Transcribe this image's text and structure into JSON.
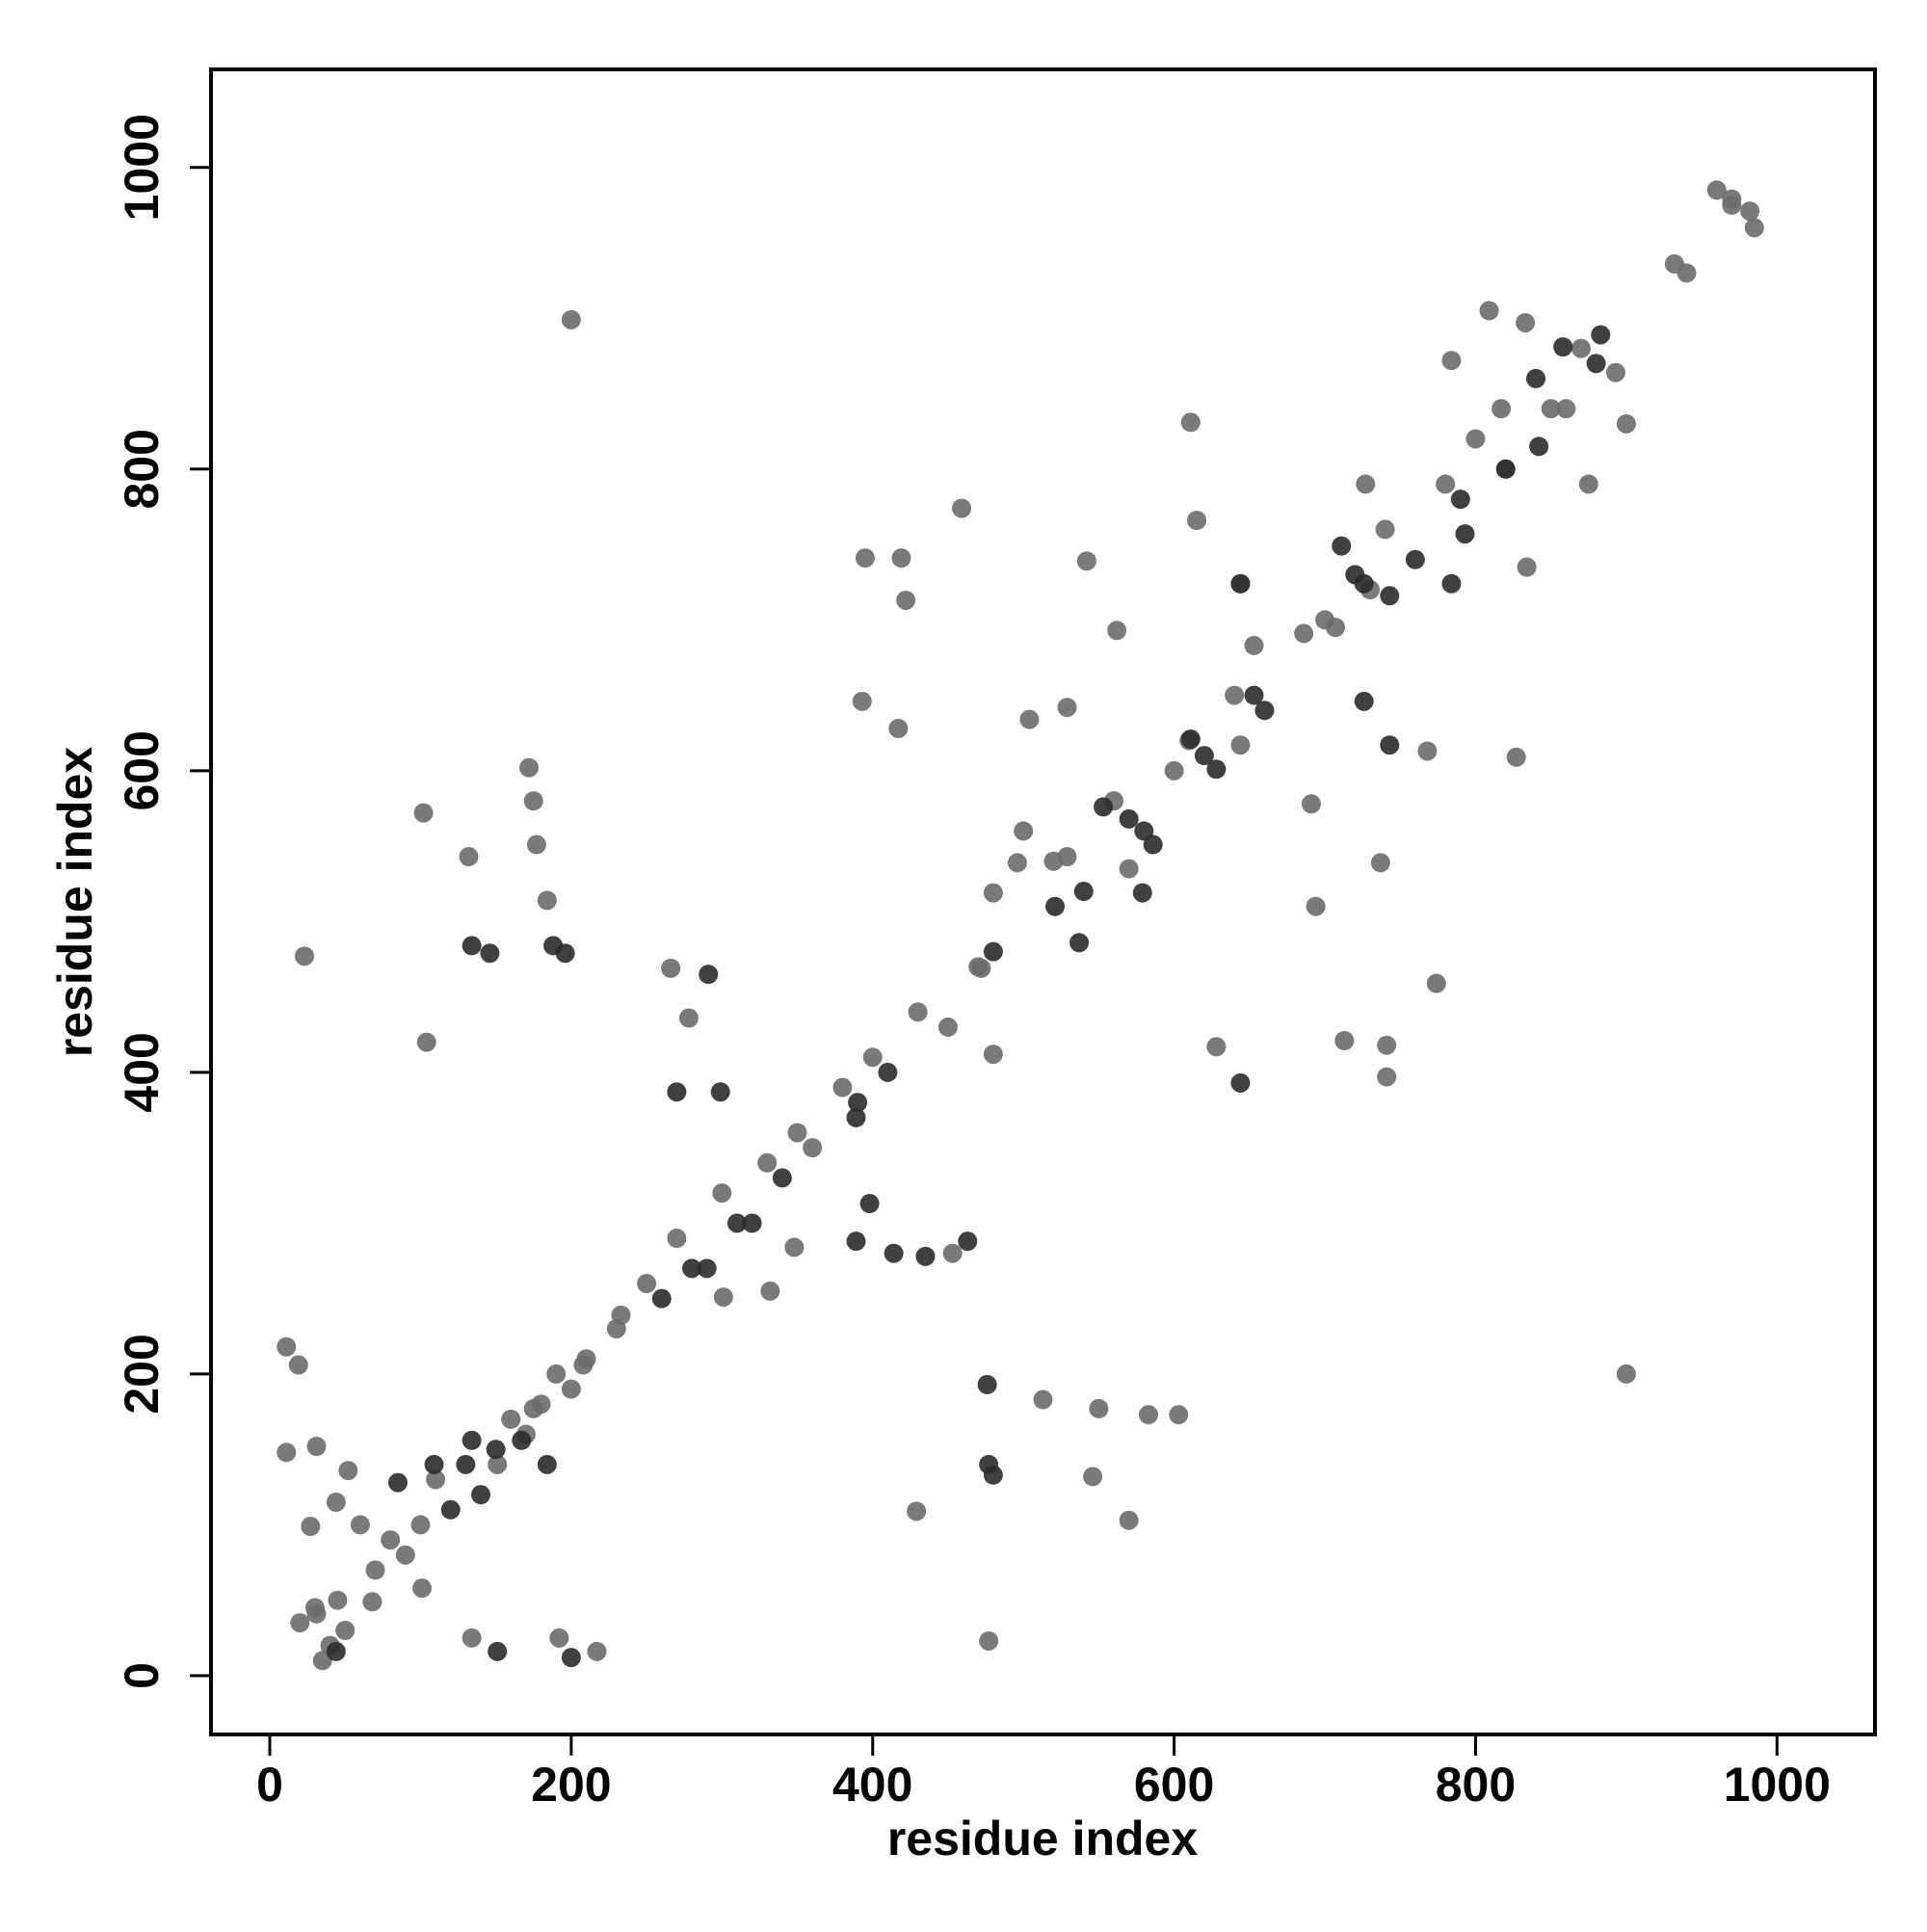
{
  "chart_data": {
    "type": "scatter",
    "xlabel": "residue index",
    "ylabel": "residue index",
    "xlim": [
      -39,
      1065
    ],
    "ylim": [
      -39,
      1065
    ],
    "xticks": [
      0,
      200,
      400,
      600,
      800,
      1000
    ],
    "yticks": [
      0,
      200,
      400,
      600,
      800,
      1000
    ],
    "grid": false,
    "series": [
      {
        "color": "#6b6b6b",
        "x": [
          20,
          30,
          40,
          45,
          50,
          35,
          60,
          70,
          80,
          90,
          100,
          110,
          160,
          170,
          180,
          190,
          200,
          210,
          230,
          250,
          270,
          300,
          330,
          350,
          360,
          380,
          400,
          430,
          450,
          470,
          500,
          520,
          560,
          600,
          610,
          640,
          700,
          730,
          740,
          780,
          800,
          820,
          860,
          870,
          900,
          960,
          985,
          970,
          940,
          23,
          477,
          200,
          900,
          104,
          132,
          172,
          175,
          177,
          184,
          102,
          395,
          419,
          422,
          417,
          393,
          459,
          429,
          453,
          513,
          546,
          550,
          570,
          603,
          583,
          628,
          713,
          741,
          741,
          774,
          827,
          691,
          694,
          737,
          611,
          615,
          542,
          562,
          834,
          932,
          970,
          982,
          686,
          707,
          301,
          332,
          348,
          266,
          278,
          31,
          68,
          101,
          134,
          192,
          217,
          11,
          31,
          52,
          11,
          19,
          27,
          44,
          208,
          233,
          151,
          175,
          644,
          768,
          850,
          893,
          875,
          809,
          833,
          784,
          817,
          727,
          529,
          570,
          480,
          496,
          480,
          472,
          504,
          529,
          644,
          653
        ],
        "y": [
          35,
          45,
          20,
          50,
          30,
          10,
          100,
          70,
          90,
          80,
          100,
          130,
          170,
          160,
          180,
          200,
          190,
          210,
          230,
          260,
          290,
          320,
          340,
          360,
          350,
          390,
          410,
          440,
          430,
          470,
          560,
          540,
          580,
          600,
          620,
          650,
          700,
          720,
          760,
          790,
          820,
          800,
          840,
          880,
          830,
          985,
          960,
          975,
          930,
          477,
          23,
          899,
          200,
          420,
          543,
          602,
          580,
          551,
          514,
          572,
          741,
          741,
          713,
          628,
          646,
          774,
          109,
          280,
          183,
          132,
          177,
          103,
          173,
          173,
          417,
          421,
          418,
          397,
          459,
          609,
          578,
          510,
          539,
          831,
          766,
          739,
          693,
          735,
          936,
          979,
          971,
          691,
          695,
          251,
          255,
          284,
          469,
          436,
          41,
          49,
          58,
          25,
          25,
          16,
          148,
          152,
          136,
          218,
          206,
          99,
          115,
          206,
          239,
          140,
          177,
          617,
          613,
          840,
          864,
          790,
          905,
          897,
          872,
          840,
          790,
          543,
          535,
          519,
          539,
          412,
          469,
          634,
          642,
          724,
          683
        ]
      },
      {
        "color": "#2b2b2b",
        "x": [
          120,
          130,
          140,
          150,
          260,
          280,
          290,
          310,
          320,
          340,
          390,
          410,
          480,
          540,
          580,
          620,
          660,
          720,
          760,
          790,
          820,
          840,
          880,
          134,
          146,
          188,
          196,
          463,
          476,
          477,
          480,
          644,
          389,
          414,
          435,
          291,
          270,
          299,
          398,
          389,
          44,
          151,
          200,
          85,
          109,
          134,
          167,
          184,
          611,
          628,
          726,
          743,
          711,
          726,
          743,
          784,
          793,
          858,
          883,
          842,
          553,
          586,
          521,
          537,
          570,
          579,
          653,
          644
        ],
        "y": [
          110,
          140,
          120,
          150,
          250,
          270,
          270,
          300,
          300,
          330,
          380,
          400,
          480,
          520,
          560,
          610,
          640,
          730,
          740,
          780,
          800,
          860,
          870,
          484,
          479,
          484,
          479,
          288,
          193,
          140,
          133,
          393,
          288,
          280,
          278,
          465,
          387,
          387,
          313,
          370,
          16,
          16,
          12,
          128,
          140,
          156,
          156,
          140,
          621,
          601,
          646,
          617,
          749,
          724,
          716,
          724,
          757,
          881,
          889,
          815,
          576,
          551,
          510,
          486,
          568,
          519,
          650,
          724
        ]
      }
    ]
  }
}
